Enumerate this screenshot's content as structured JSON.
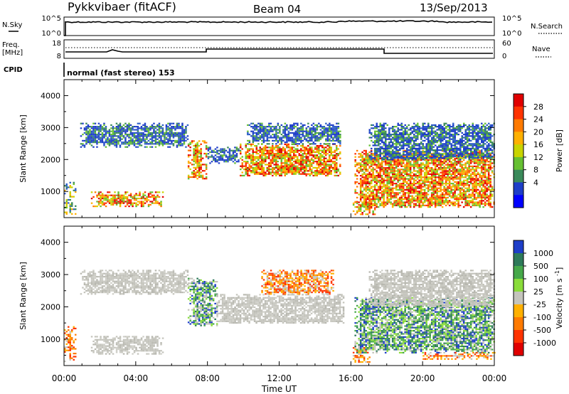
{
  "header": {
    "title": "Pykkvibaer (fitACF)",
    "beam": "Beam 04",
    "date": "13/Sep/2013"
  },
  "top_panels": {
    "nsky_label": "N.Sky",
    "nsky_ticks": [
      "10^5",
      "10^0"
    ],
    "nsearch_label": "N.Search",
    "nsearch_ticks": [
      "10^5",
      "10^0"
    ],
    "freq_label_1": "Freq.",
    "freq_label_2": "[MHz]",
    "freq_ticks": [
      "18",
      "8"
    ],
    "nave_label": "Nave",
    "nave_ticks": [
      "60",
      "0"
    ],
    "cpid_label": "CPID",
    "cpid_text": "normal (fast stereo) 153"
  },
  "chart_data": [
    {
      "type": "heatmap",
      "name": "power",
      "ylabel": "Slant Range [km]",
      "yticks": [
        "4000",
        "3000",
        "2000",
        "1000"
      ],
      "ylim": [
        180,
        4500
      ],
      "xlim": [
        0,
        24
      ],
      "colorbar_label": "Power [dB]",
      "colorbar_ticks": [
        "28",
        "24",
        "20",
        "16",
        "12",
        "8",
        "4"
      ],
      "colorbar_colors": [
        "#e00000",
        "#ff3300",
        "#ff7a00",
        "#ffb000",
        "#c8d400",
        "#66c032",
        "#3a8a5a",
        "#1e3ec8",
        "#0000ff"
      ],
      "regions": [
        {
          "t0": 0.9,
          "t1": 6.9,
          "r0": 2400,
          "r1": 3150,
          "level": "low"
        },
        {
          "t0": 1.5,
          "t1": 5.5,
          "r0": 550,
          "r1": 1000,
          "level": "high"
        },
        {
          "t0": 0.0,
          "t1": 0.6,
          "r0": 300,
          "r1": 1300,
          "level": "mid"
        },
        {
          "t0": 6.9,
          "t1": 7.9,
          "r0": 1400,
          "r1": 2600,
          "level": "high"
        },
        {
          "t0": 8.0,
          "t1": 9.8,
          "r0": 1900,
          "r1": 2400,
          "level": "low"
        },
        {
          "t0": 9.8,
          "t1": 15.4,
          "r0": 1500,
          "r1": 2500,
          "level": "high"
        },
        {
          "t0": 10.2,
          "t1": 15.4,
          "r0": 2500,
          "r1": 3150,
          "level": "low"
        },
        {
          "t0": 16.1,
          "t1": 17.3,
          "r0": 300,
          "r1": 700,
          "level": "high"
        },
        {
          "t0": 16.2,
          "t1": 24.0,
          "r0": 500,
          "r1": 2300,
          "level": "high"
        },
        {
          "t0": 17.0,
          "t1": 24.0,
          "r0": 2000,
          "r1": 3150,
          "level": "low"
        }
      ]
    },
    {
      "type": "heatmap",
      "name": "velocity",
      "ylabel": "Slant Range [km]",
      "yticks": [
        "4000",
        "3000",
        "2000",
        "1000"
      ],
      "ylim": [
        180,
        4500
      ],
      "xlim": [
        0,
        24
      ],
      "xticks": [
        "00:00",
        "04:00",
        "08:00",
        "12:00",
        "16:00",
        "20:00",
        "00:00"
      ],
      "xlabel": "Time UT",
      "colorbar_label": "Velocity",
      "colorbar_unit": "[m s",
      "colorbar_unit_sup": "-1",
      "colorbar_unit_end": "]",
      "colorbar_ticks": [
        "1000",
        "500",
        "100",
        "25",
        "-25",
        "-100",
        "-500",
        "-1000"
      ],
      "colorbar_colors": [
        "#1e3ec8",
        "#2e7a5a",
        "#46a84a",
        "#8adc3a",
        "#c4c4bc",
        "#ffb000",
        "#ff7a00",
        "#ff3300",
        "#e00000"
      ],
      "regions": [
        {
          "t0": 0.9,
          "t1": 6.9,
          "r0": 2400,
          "r1": 3150,
          "level": "gray"
        },
        {
          "t0": 1.5,
          "t1": 5.5,
          "r0": 550,
          "r1": 1100,
          "level": "gray"
        },
        {
          "t0": 0.0,
          "t1": 0.6,
          "r0": 300,
          "r1": 1400,
          "level": "orange"
        },
        {
          "t0": 6.9,
          "t1": 8.5,
          "r0": 1400,
          "r1": 2900,
          "level": "green"
        },
        {
          "t0": 8.5,
          "t1": 15.6,
          "r0": 1500,
          "r1": 2400,
          "level": "gray"
        },
        {
          "t0": 11.0,
          "t1": 15.0,
          "r0": 2400,
          "r1": 3150,
          "level": "orange"
        },
        {
          "t0": 16.1,
          "t1": 17.0,
          "r0": 300,
          "r1": 800,
          "level": "orange"
        },
        {
          "t0": 16.2,
          "t1": 24.0,
          "r0": 600,
          "r1": 2300,
          "level": "green"
        },
        {
          "t0": 17.0,
          "t1": 24.0,
          "r0": 2000,
          "r1": 3150,
          "level": "gray"
        },
        {
          "t0": 20.0,
          "t1": 24.0,
          "r0": 400,
          "r1": 600,
          "level": "orange"
        }
      ]
    }
  ]
}
